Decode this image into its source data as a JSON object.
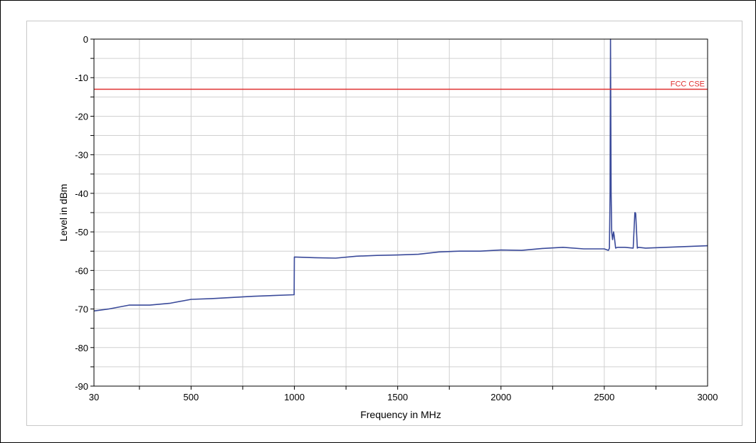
{
  "chart_data": {
    "type": "line",
    "xlabel": "Frequency in MHz",
    "ylabel": "Level in dBm",
    "xlim": [
      30,
      3000
    ],
    "ylim": [
      -90,
      0
    ],
    "x_ticks": [
      30,
      500,
      1000,
      1500,
      2000,
      2500,
      3000
    ],
    "y_ticks": [
      0,
      -10,
      -20,
      -30,
      -40,
      -50,
      -60,
      -70,
      -80,
      -90
    ],
    "grid": true,
    "limit_line": {
      "name": "FCC CSE",
      "value": -13,
      "color": "#e03030"
    },
    "series": [
      {
        "color": "#3a4a9a",
        "x": [
          30,
          100,
          200,
          300,
          400,
          500,
          600,
          700,
          800,
          900,
          999,
          1000,
          1100,
          1200,
          1300,
          1400,
          1500,
          1600,
          1700,
          1800,
          1900,
          2000,
          2100,
          2200,
          2300,
          2400,
          2470,
          2500,
          2520,
          2525,
          2528,
          2530,
          2533,
          2536,
          2540,
          2545,
          2548,
          2555,
          2565,
          2600,
          2640,
          2648,
          2650,
          2652,
          2660,
          2665,
          2700,
          2800,
          2900,
          3000
        ],
        "values": [
          -70.5,
          -70,
          -69,
          -69,
          -68.5,
          -67.5,
          -67.3,
          -67,
          -66.7,
          -66.5,
          -66.3,
          -56.5,
          -56.7,
          -56.8,
          -56.3,
          -56.1,
          -56,
          -55.8,
          -55.2,
          -55,
          -55,
          -54.7,
          -54.8,
          -54.3,
          -54,
          -54.4,
          -54.4,
          -54.4,
          -54.8,
          -54.2,
          -40,
          0,
          -40,
          -50,
          -52,
          -50,
          -51,
          -54.2,
          -54,
          -54,
          -54.2,
          -45,
          -45,
          -45.3,
          -54.2,
          -54,
          -54.2,
          -54,
          -53.8,
          -53.6
        ]
      }
    ]
  }
}
